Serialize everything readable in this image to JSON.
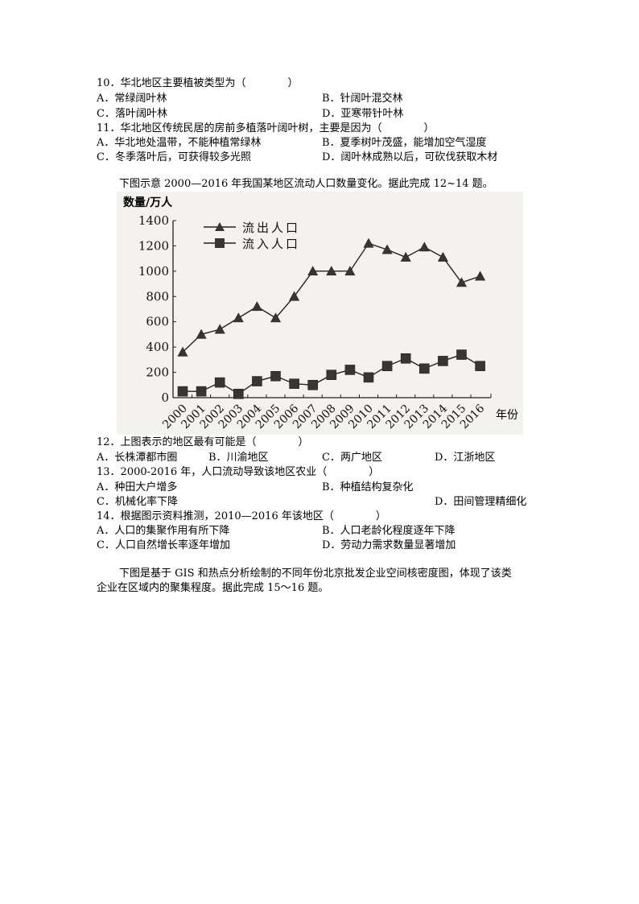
{
  "q10": {
    "stem": "10．华北地区主要植被类型为（　　　　）",
    "options": {
      "A": "A．常绿阔叶林",
      "B": "B．针阔叶混交林",
      "C": "C．落叶阔叶林",
      "D": "D．亚寒带针叶林"
    }
  },
  "q11": {
    "stem": "11．华北地区传统民居的房前多植落叶阔叶树，主要是因为（　　　　）",
    "options": {
      "A": "A．华北地处温带，不能种植常绿林",
      "B": "B．夏季树叶茂盛，能增加空气湿度",
      "C": "C．冬季落叶后，可获得较多光照",
      "D": "D．阔叶林成熟以后，可砍伐获取木材"
    }
  },
  "intro_12_14": "下图示意 2000—2016 年我国某地区流动人口数量变化。据此完成 12~14 题。",
  "chart_data": {
    "type": "line",
    "title": "",
    "xlabel": "年份",
    "ylabel": "数量/万人",
    "ylim": [
      0,
      1400
    ],
    "yticks": [
      0,
      200,
      400,
      600,
      800,
      1000,
      1200,
      1400
    ],
    "grid": false,
    "legend_position": "upper-left",
    "categories": [
      "2000",
      "2001",
      "2002",
      "2003",
      "2004",
      "2005",
      "2006",
      "2007",
      "2008",
      "2009",
      "2010",
      "2011",
      "2012",
      "2013",
      "2014",
      "2015",
      "2016"
    ],
    "series": [
      {
        "name": "流出人口",
        "marker": "triangle",
        "values": [
          360,
          500,
          540,
          630,
          720,
          630,
          800,
          1000,
          1000,
          1000,
          1220,
          1170,
          1110,
          1190,
          1110,
          910,
          960
        ]
      },
      {
        "name": "流入人口",
        "marker": "square",
        "values": [
          50,
          50,
          120,
          30,
          130,
          170,
          110,
          100,
          180,
          220,
          160,
          250,
          310,
          230,
          290,
          340,
          250
        ]
      }
    ]
  },
  "q12": {
    "stem": "12．上图表示的地区最有可能是（　　　　）",
    "options": {
      "A": "A．长株潭都市圈",
      "B": "B．川渝地区",
      "C": "C．两广地区",
      "D": "D．江浙地区"
    }
  },
  "q13": {
    "stem": "13．2000-2016 年，人口流动导致该地区农业（　　　　）",
    "options": {
      "A": "A．种田大户增多",
      "B": "B．种植结构复杂化",
      "C": "C．机械化率下降",
      "D": "D．田间管理精细化"
    }
  },
  "q14": {
    "stem": "14．根据图示资料推测，2010—2016 年该地区（　　　　）",
    "options": {
      "A": "A．人口的集聚作用有所下降",
      "B": "B．人口老龄化程度逐年下降",
      "C": "C．人口自然增长率逐年增加",
      "D": "D．劳动力需求数量显著增加"
    }
  },
  "intro_15_16": {
    "line1": "下图是基于 GIS 和热点分析绘制的不同年份北京批发企业空间核密度图，体现了该类",
    "line2": "企业在区域内的聚集程度。据此完成 15～16 题。"
  }
}
